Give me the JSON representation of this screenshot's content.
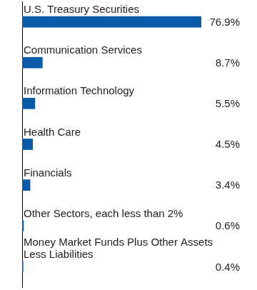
{
  "chart_data": {
    "type": "bar",
    "orientation": "horizontal",
    "categories": [
      "U.S. Treasury Securities",
      "Communication Services",
      "Information Technology",
      "Health Care",
      "Financials",
      "Other Sectors, each less than 2%",
      "Money Market Funds Plus Other Assets Less Liabilities"
    ],
    "values": [
      76.9,
      8.7,
      5.5,
      4.5,
      3.4,
      0.6,
      0.4
    ],
    "value_labels": [
      "76.9%",
      "8.7%",
      "5.5%",
      "4.5%",
      "3.4%",
      "0.6%",
      "0.4%"
    ],
    "data_labels": true,
    "color": "#0a5aa7",
    "xlim": [
      0,
      77
    ],
    "tick_labels": false,
    "grid": false
  }
}
